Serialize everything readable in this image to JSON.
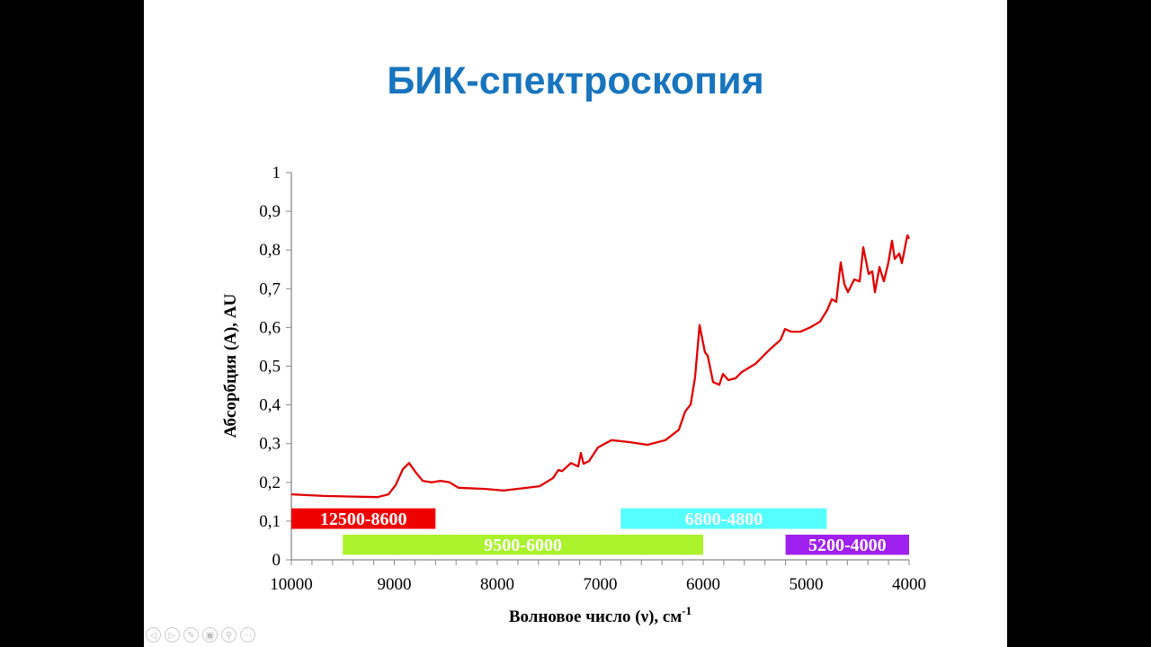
{
  "slide": {
    "title": "БИК-спектроскопия"
  },
  "controls": [
    {
      "name": "previous-slide-icon",
      "glyph": "◁"
    },
    {
      "name": "next-slide-icon",
      "glyph": "▷"
    },
    {
      "name": "pen-icon",
      "glyph": "✎"
    },
    {
      "name": "slides-grid-icon",
      "glyph": "▣"
    },
    {
      "name": "zoom-icon",
      "glyph": "⚲"
    },
    {
      "name": "more-options-icon",
      "glyph": "⋯"
    }
  ],
  "chart_data": {
    "type": "line",
    "title": "",
    "xlabel": "Волновое число (ν), см",
    "xlabel_sup": "-1",
    "ylabel": "Абсорбция (A), AU",
    "xlim": [
      10000,
      4000
    ],
    "ylim": [
      0,
      1
    ],
    "x_ticks": [
      "10000",
      "9000",
      "8000",
      "7000",
      "6000",
      "5000",
      "4000"
    ],
    "x_tick_values": [
      10000,
      9000,
      8000,
      7000,
      6000,
      5000,
      4000
    ],
    "y_ticks": [
      "0",
      "0,1",
      "0,2",
      "0,3",
      "0,4",
      "0,5",
      "0,6",
      "0,7",
      "0,8",
      "0,9",
      "1"
    ],
    "y_tick_values": [
      0,
      0.1,
      0.2,
      0.3,
      0.4,
      0.5,
      0.6,
      0.7,
      0.8,
      0.9,
      1
    ],
    "grid": false,
    "series": [
      {
        "name": "spectrum",
        "color": "#e00000",
        "x": [
          10000,
          9686,
          9162,
          9057,
          8987,
          8917,
          8856,
          8795,
          8725,
          8637,
          8550,
          8463,
          8376,
          8114,
          7939,
          7590,
          7459,
          7406,
          7371,
          7284,
          7214,
          7188,
          7162,
          7109,
          7022,
          6891,
          6716,
          6541,
          6367,
          6236,
          6175,
          6122,
          6079,
          6035,
          5983,
          5956,
          5904,
          5843,
          5808,
          5755,
          5685,
          5624,
          5493,
          5362,
          5249,
          5205,
          5144,
          5057,
          4969,
          4865,
          4795,
          4751,
          4708,
          4664,
          4629,
          4594,
          4533,
          4480,
          4445,
          4393,
          4358,
          4332,
          4288,
          4245,
          4201,
          4166,
          4140,
          4096,
          4070,
          4017,
          4000
        ],
        "y": [
          0.169,
          0.165,
          0.162,
          0.169,
          0.193,
          0.234,
          0.25,
          0.227,
          0.204,
          0.2,
          0.204,
          0.2,
          0.186,
          0.183,
          0.179,
          0.19,
          0.211,
          0.232,
          0.229,
          0.25,
          0.241,
          0.276,
          0.248,
          0.255,
          0.29,
          0.309,
          0.304,
          0.297,
          0.309,
          0.336,
          0.383,
          0.401,
          0.471,
          0.606,
          0.536,
          0.527,
          0.459,
          0.452,
          0.48,
          0.464,
          0.469,
          0.485,
          0.506,
          0.541,
          0.568,
          0.596,
          0.589,
          0.589,
          0.599,
          0.615,
          0.645,
          0.673,
          0.666,
          0.768,
          0.712,
          0.691,
          0.724,
          0.719,
          0.807,
          0.738,
          0.745,
          0.691,
          0.756,
          0.719,
          0.768,
          0.824,
          0.777,
          0.791,
          0.766,
          0.838,
          0.829
        ]
      }
    ],
    "bands": [
      {
        "label": "12500-8600",
        "from": 10000,
        "to": 8600,
        "y": [
          0.08,
          0.133
        ],
        "color": "#ee0000"
      },
      {
        "label": "6800-4800",
        "from": 6800,
        "to": 4800,
        "y": [
          0.08,
          0.133
        ],
        "color": "#55ffff"
      },
      {
        "label": "9500-6000",
        "from": 9500,
        "to": 6000,
        "y": [
          0.013,
          0.065
        ],
        "color": "#aaf22c"
      },
      {
        "label": "5200-4000",
        "from": 5200,
        "to": 4000,
        "y": [
          0.013,
          0.065
        ],
        "color": "#a020f0"
      }
    ]
  }
}
